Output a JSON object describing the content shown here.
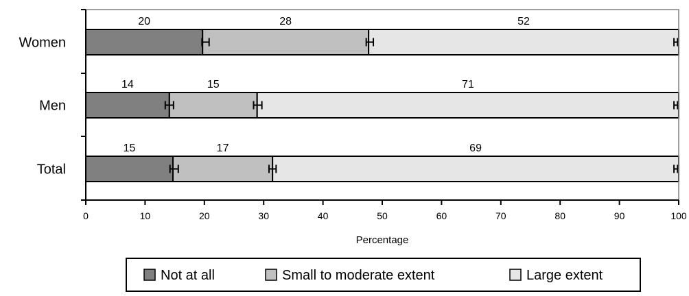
{
  "chart_data": {
    "type": "bar",
    "orientation": "horizontal",
    "stacked": true,
    "categories": [
      "Women",
      "Men",
      "Total"
    ],
    "series": [
      {
        "name": "Not at all",
        "values": [
          20,
          14,
          15
        ],
        "labels": [
          "20",
          "14",
          "15"
        ],
        "ends": [
          19.7,
          14.1,
          14.7
        ],
        "color": "#808080"
      },
      {
        "name": "Small to moderate extent",
        "values": [
          28,
          15,
          17
        ],
        "labels": [
          "28",
          "15",
          "17"
        ],
        "ends": [
          47.7,
          28.9,
          31.5
        ],
        "color": "#c0c0c0"
      },
      {
        "name": "Large extent",
        "values": [
          52,
          71,
          69
        ],
        "labels": [
          "52",
          "71",
          "69"
        ],
        "ends": [
          100,
          100,
          100
        ],
        "color": "#e6e6e6"
      }
    ],
    "error_bars": [
      [
        {
          "center": 20.2,
          "half": 0.6
        },
        {
          "center": 47.9,
          "half": 0.6
        },
        {
          "center": 99.5,
          "half": 0.3
        }
      ],
      [
        {
          "center": 14.1,
          "half": 0.7
        },
        {
          "center": 29.0,
          "half": 0.7
        },
        {
          "center": 99.5,
          "half": 0.3
        }
      ],
      [
        {
          "center": 14.9,
          "half": 0.7
        },
        {
          "center": 31.5,
          "half": 0.6
        },
        {
          "center": 99.5,
          "half": 0.3
        }
      ]
    ],
    "xlabel": "Percentage",
    "xlim": [
      0,
      100
    ],
    "xticks": [
      0,
      10,
      20,
      30,
      40,
      50,
      60,
      70,
      80,
      90,
      100
    ],
    "legend_position": "bottom",
    "grid": false
  }
}
